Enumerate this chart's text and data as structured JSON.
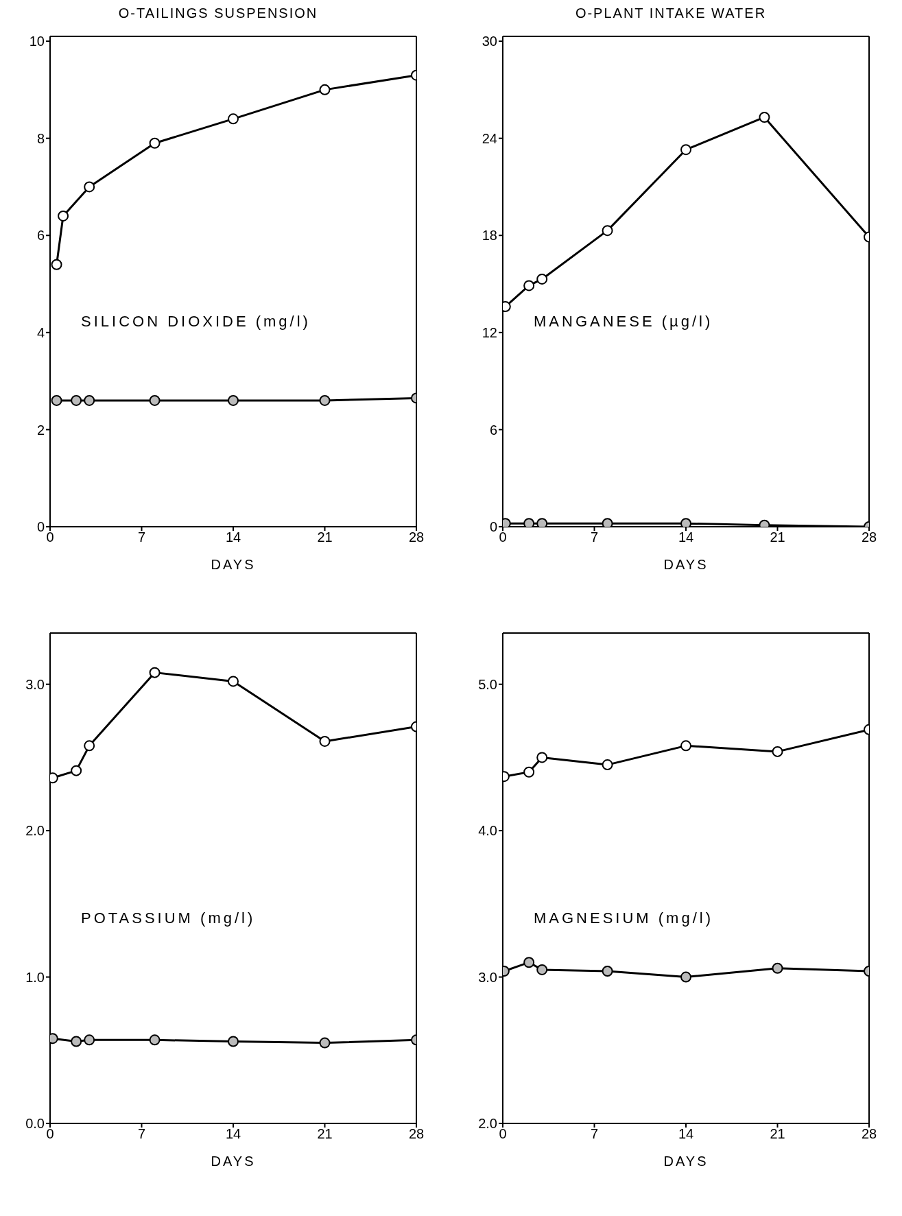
{
  "chart_data": [
    {
      "type": "line",
      "title": "O-TAILINGS SUSPENSION",
      "xlabel": "DAYS",
      "annotations": [
        "SILICON DIOXIDE (mg/l)"
      ],
      "xlim": [
        0,
        28
      ],
      "xticks": [
        0,
        7,
        14,
        21,
        28
      ],
      "ylim": [
        0,
        10.1
      ],
      "yticks": [
        0,
        2,
        4,
        6,
        8,
        10
      ],
      "marker": "circle",
      "series": [
        {
          "color": "#000000",
          "x": [
            0.5,
            1,
            3,
            8,
            14,
            21,
            28
          ],
          "values": [
            5.4,
            6.4,
            7.0,
            7.9,
            8.4,
            9.0,
            9.3
          ]
        },
        {
          "color": "#000000",
          "x": [
            0.5,
            2,
            3,
            8,
            14,
            21,
            28
          ],
          "values": [
            2.6,
            2.6,
            2.6,
            2.6,
            2.6,
            2.6,
            2.65
          ]
        }
      ]
    },
    {
      "type": "line",
      "title": "O-PLANT INTAKE WATER",
      "xlabel": "DAYS",
      "annotations": [
        "MANGANESE (µg/l)"
      ],
      "xlim": [
        0,
        28
      ],
      "xticks": [
        0,
        7,
        14,
        21,
        28
      ],
      "ylim": [
        0,
        30.3
      ],
      "yticks": [
        0,
        6,
        12,
        18,
        24,
        30
      ],
      "marker": "circle",
      "series": [
        {
          "color": "#000000",
          "x": [
            0.2,
            2,
            3,
            8,
            14,
            20,
            28
          ],
          "values": [
            13.6,
            14.9,
            15.3,
            18.3,
            23.3,
            25.3,
            17.9
          ]
        },
        {
          "color": "#000000",
          "x": [
            0.2,
            2,
            3,
            8,
            14,
            20,
            28
          ],
          "values": [
            0.2,
            0.2,
            0.2,
            0.2,
            0.2,
            0.1,
            0
          ]
        }
      ]
    },
    {
      "type": "line",
      "xlabel": "DAYS",
      "annotations": [
        "POTASSIUM (mg/l)"
      ],
      "xlim": [
        0,
        28
      ],
      "xticks": [
        0,
        7,
        14,
        21,
        28
      ],
      "ylim": [
        0,
        3.35
      ],
      "yticks": [
        {
          "value": 0,
          "label": "0.0"
        },
        {
          "value": 1,
          "label": "1.0"
        },
        {
          "value": 2,
          "label": "2.0"
        },
        {
          "value": 3,
          "label": "3.0"
        }
      ],
      "marker": "circle",
      "series": [
        {
          "color": "#000000",
          "x": [
            0.2,
            2,
            3,
            8,
            14,
            21,
            28
          ],
          "values": [
            2.36,
            2.41,
            2.58,
            3.08,
            3.02,
            2.61,
            2.71
          ]
        },
        {
          "color": "#000000",
          "x": [
            0.2,
            2,
            3,
            8,
            14,
            21,
            28
          ],
          "values": [
            0.58,
            0.56,
            0.57,
            0.57,
            0.56,
            0.55,
            0.57
          ]
        }
      ]
    },
    {
      "type": "line",
      "xlabel": "DAYS",
      "annotations": [
        "MAGNESIUM (mg/l)"
      ],
      "xlim": [
        0,
        28
      ],
      "xticks": [
        0,
        7,
        14,
        21,
        28
      ],
      "ylim": [
        2,
        5.35
      ],
      "yticks": [
        {
          "value": 2,
          "label": "2.0"
        },
        {
          "value": 3,
          "label": "3.0"
        },
        {
          "value": 4,
          "label": "4.0"
        },
        {
          "value": 5,
          "label": "5.0"
        }
      ],
      "marker": "circle",
      "series": [
        {
          "color": "#000000",
          "x": [
            0.1,
            2,
            3,
            8,
            14,
            21,
            28
          ],
          "values": [
            4.37,
            4.4,
            4.5,
            4.45,
            4.58,
            4.54,
            4.69
          ]
        },
        {
          "color": "#000000",
          "x": [
            0.1,
            2,
            3,
            8,
            14,
            21,
            28
          ],
          "values": [
            3.04,
            3.1,
            3.05,
            3.04,
            3.0,
            3.06,
            3.04
          ]
        }
      ]
    }
  ]
}
